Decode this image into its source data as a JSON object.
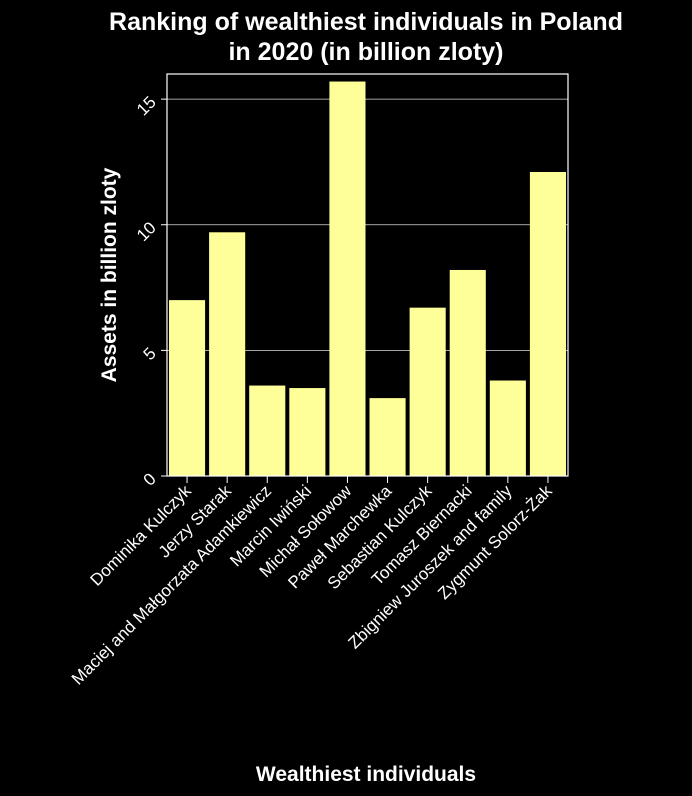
{
  "chart_data": {
    "type": "bar",
    "title_lines": [
      "Ranking of wealthiest individuals in Poland",
      "in 2020 (in billion zloty)"
    ],
    "xlabel": "Wealthiest individuals",
    "ylabel": "Assets in billion zloty",
    "ylim": [
      0,
      16
    ],
    "yticks": [
      0,
      5,
      10,
      15
    ],
    "grid": true,
    "categories": [
      "Dominika Kulczyk",
      "Jerzy Starak",
      "Maciej and Małgorzata Adamkiewicz",
      "Marcin Iwiński",
      "Michał Sołowow",
      "Paweł Marchewka",
      "Sebastian Kulczyk",
      "Tomasz Biernacki",
      "Zbigniew Juroszek and family",
      "Zygmunt Solorz-Żak"
    ],
    "values": [
      7.0,
      9.7,
      3.6,
      3.5,
      15.7,
      3.1,
      6.7,
      8.2,
      3.8,
      12.1
    ],
    "colors": {
      "background": "#000000",
      "bar": "#ffff99",
      "grid": "#ffffff",
      "text": "#ffffff"
    }
  }
}
